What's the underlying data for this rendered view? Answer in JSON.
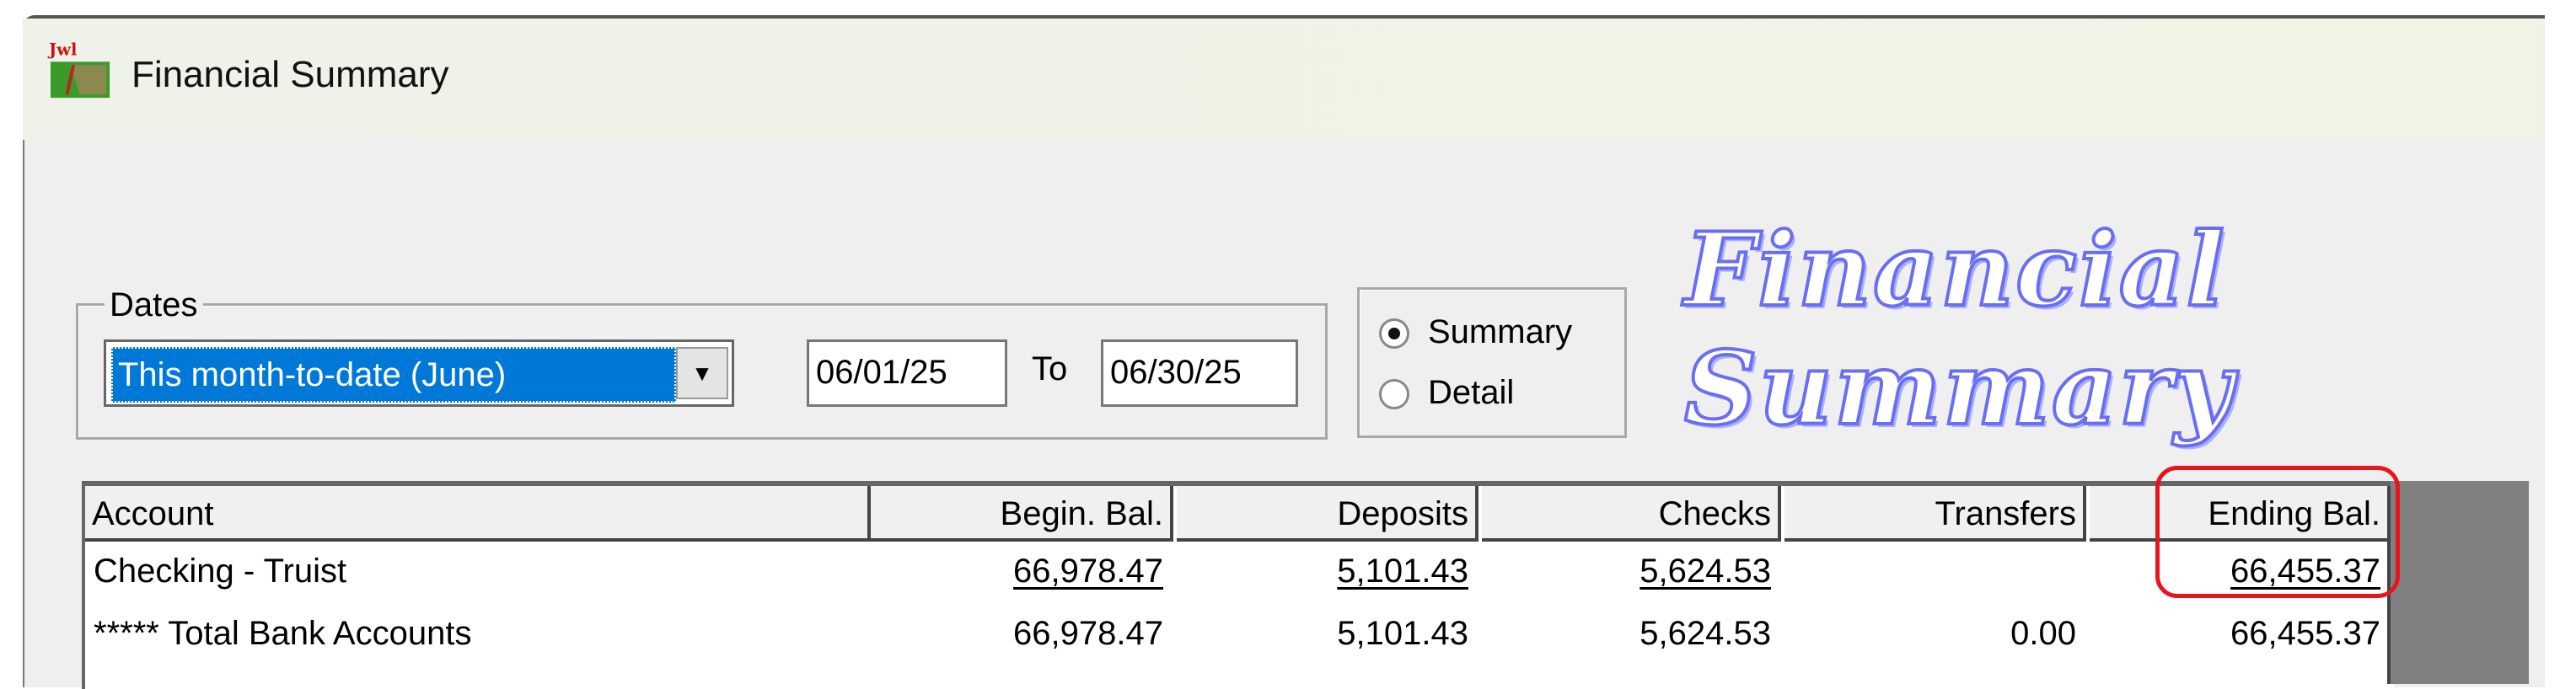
{
  "window": {
    "title": "Financial Summary",
    "icon": "jewel-app-icon"
  },
  "banner": {
    "text": "Financial Summary"
  },
  "dates": {
    "label": "Dates",
    "range_selected": "This month-to-date (June)",
    "from": "06/01/25",
    "to_label": "To",
    "to": "06/30/25"
  },
  "view": {
    "options": [
      {
        "label": "Summary",
        "selected": true
      },
      {
        "label": "Detail",
        "selected": false
      }
    ]
  },
  "table": {
    "columns": [
      "Account",
      "Begin. Bal.",
      "Deposits",
      "Checks",
      "Transfers",
      "Ending Bal."
    ],
    "rows": [
      {
        "account": "Checking - Truist",
        "begin": "66,978.47",
        "deposits": "5,101.43",
        "checks": "5,624.53",
        "transfers": "",
        "ending": "66,455.37"
      },
      {
        "account": "***** Total Bank Accounts",
        "begin": "66,978.47",
        "deposits": "5,101.43",
        "checks": "5,624.53",
        "transfers": "0.00",
        "ending": "66,455.37"
      }
    ]
  },
  "highlight_color": "#e8141e",
  "selection_color": "#0078d7"
}
